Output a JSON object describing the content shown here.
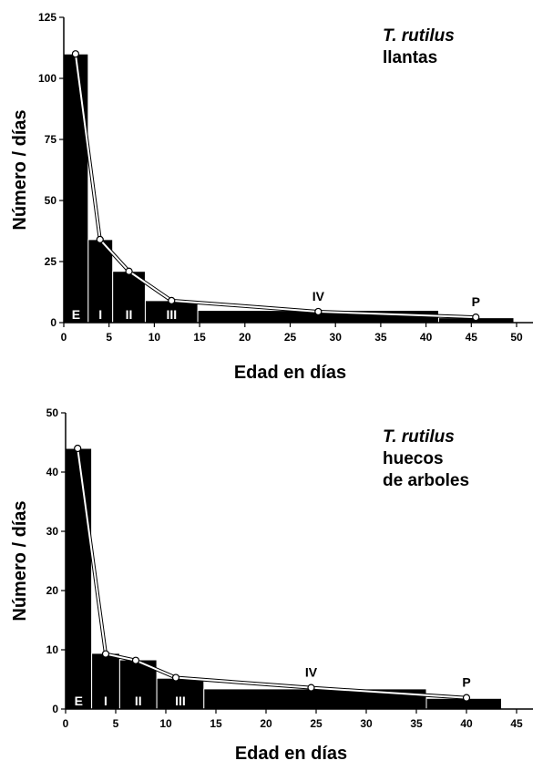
{
  "chart_data": [
    {
      "type": "histogram",
      "bins": [
        0,
        2.7,
        5.4,
        9,
        14.8,
        41.4,
        49.7
      ],
      "counts": [
        110,
        34,
        21,
        9,
        5,
        2
      ],
      "color": "#000000",
      "categories": [
        "E",
        "I",
        "II",
        "III",
        "IV",
        "P"
      ],
      "series": [
        {
          "x": [
            1.3,
            4,
            7.2,
            11.9,
            28.1,
            45.5
          ],
          "values": [
            110,
            34,
            21,
            9,
            4.5,
            2.2
          ],
          "color": "#ffffff"
        }
      ],
      "xlabel": "Edad en días",
      "ylabel": "Número / días",
      "annotations": [
        "T. rutilus",
        "llantas"
      ],
      "xlim": [
        0,
        50
      ],
      "ylim": [
        0,
        125
      ],
      "xticks": [
        0,
        5,
        10,
        15,
        20,
        25,
        30,
        35,
        40,
        45,
        50
      ],
      "yticks": [
        0,
        25,
        50,
        75,
        100,
        125
      ]
    },
    {
      "type": "histogram",
      "bins": [
        0,
        2.6,
        5.4,
        9.1,
        13.8,
        36,
        43.5
      ],
      "counts": [
        44,
        9.4,
        8.3,
        5.2,
        3.4,
        1.8
      ],
      "color": "#000000",
      "categories": [
        "E",
        "I",
        "II",
        "III",
        "IV",
        "P"
      ],
      "series": [
        {
          "x": [
            1.2,
            4,
            7,
            11,
            24.5,
            40
          ],
          "values": [
            44,
            9.3,
            8.2,
            5.3,
            3.6,
            1.9
          ],
          "color": "#ffffff"
        }
      ],
      "xlabel": "Edad en días",
      "ylabel": "Número / días",
      "annotations": [
        "T. rutilus",
        "huecos",
        "de arboles"
      ],
      "xlim": [
        0,
        45
      ],
      "ylim": [
        0,
        50
      ],
      "xticks": [
        0,
        5,
        10,
        15,
        20,
        25,
        30,
        35,
        40,
        45
      ],
      "yticks": [
        0,
        10,
        20,
        30,
        40,
        50
      ]
    }
  ]
}
